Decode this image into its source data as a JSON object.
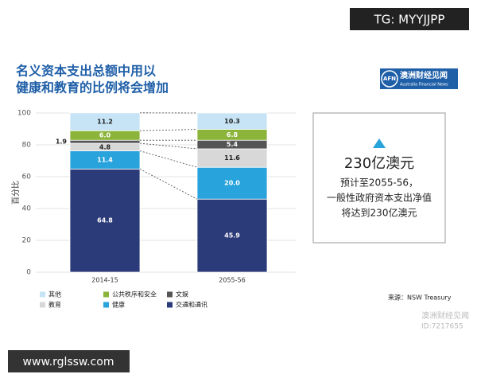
{
  "watermarks": {
    "top": "TG: MYYJJPP",
    "bottom": "www.rglssw.com",
    "corner": [
      "澳洲财经见闻",
      "ID:7217655"
    ]
  },
  "logo": {
    "mark": "AFN",
    "name": "澳洲财经见闻",
    "subtitle": "Australia Financial News"
  },
  "chart_data": {
    "type": "bar",
    "stacked": true,
    "title": [
      "名义资本支出总额中用以",
      "健康和教育的比例将会增加"
    ],
    "ylabel": "百分比",
    "categories": [
      "2014-15",
      "2055-56"
    ],
    "series": [
      {
        "name": "交通和通讯",
        "color": "#2b3a78",
        "values": [
          64.8,
          45.9
        ],
        "value_labels": [
          "64.8",
          "45.9"
        ]
      },
      {
        "name": "健康",
        "color": "#29a3dc",
        "values": [
          11.4,
          20.0
        ],
        "value_labels": [
          "11.4",
          "20.0"
        ]
      },
      {
        "name": "教育",
        "color": "#d8d8d8",
        "values": [
          4.8,
          11.6
        ],
        "value_labels": [
          "4.8",
          "11.6"
        ]
      },
      {
        "name": "文娱",
        "color": "#555555",
        "values": [
          1.9,
          5.4
        ],
        "value_labels": [
          "1.9",
          "5.4"
        ]
      },
      {
        "name": "公共秩序和安全",
        "color": "#8cb43a",
        "values": [
          6.0,
          6.8
        ],
        "value_labels": [
          "6.0",
          "6.8"
        ]
      },
      {
        "name": "其他",
        "color": "#c6e4f5",
        "values": [
          11.2,
          10.3
        ],
        "value_labels": [
          "11.2",
          "10.3"
        ]
      }
    ],
    "ylim": [
      0,
      100
    ],
    "yticks": [
      0,
      20,
      40,
      60,
      80,
      100
    ],
    "grid": true
  },
  "callout": {
    "value": "230亿澳元",
    "lines": [
      "预计至2055-56，",
      "一般性政府资本支出净值",
      "将达到230亿澳元"
    ]
  },
  "source": "来源：NSW Treasury"
}
